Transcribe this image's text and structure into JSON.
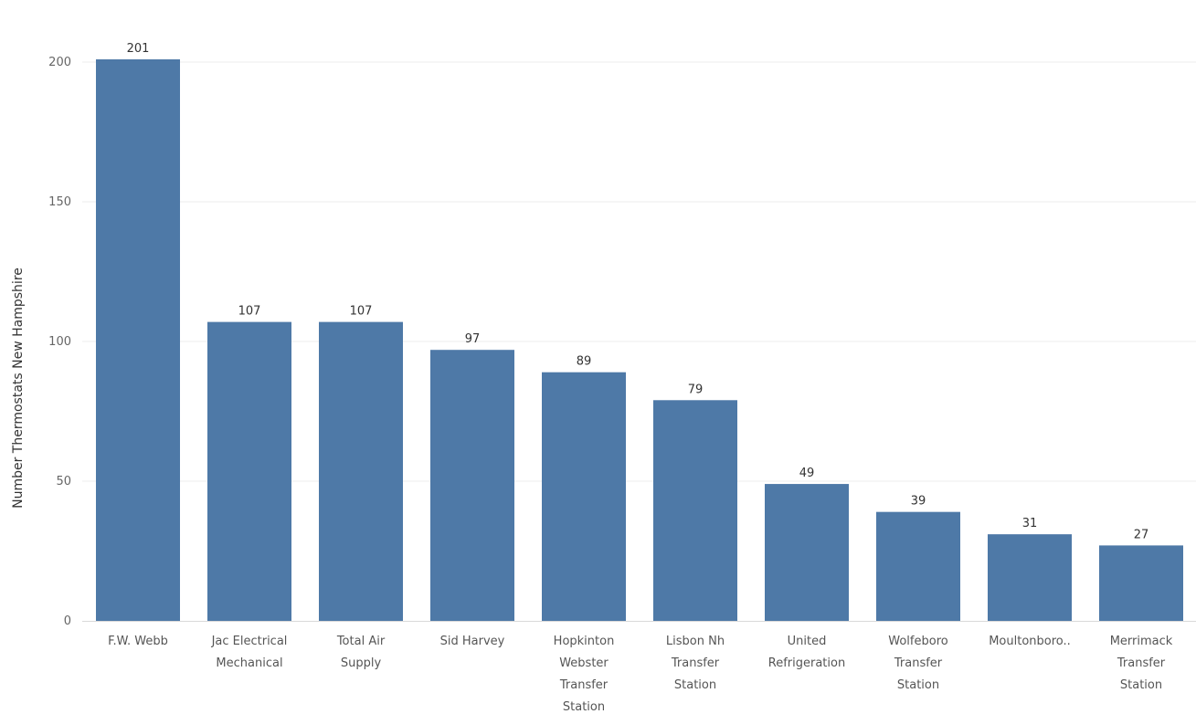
{
  "chart_data": {
    "type": "bar",
    "categories": [
      "F.W. Webb",
      "Jac Electrical Mechanical",
      "Total Air Supply",
      "Sid Harvey",
      "Hopkinton Webster Transfer Station",
      "Lisbon Nh Transfer Station",
      "United Refrigeration",
      "Wolfeboro Transfer Station",
      "Moultonboro..",
      "Merrimack Transfer Station"
    ],
    "category_label_lines": [
      [
        "F.W. Webb"
      ],
      [
        "Jac Electrical",
        "Mechanical"
      ],
      [
        "Total Air",
        "Supply"
      ],
      [
        "Sid Harvey"
      ],
      [
        "Hopkinton",
        "Webster",
        "Transfer",
        "Station"
      ],
      [
        "Lisbon Nh",
        "Transfer",
        "Station"
      ],
      [
        "United",
        "Refrigeration"
      ],
      [
        "Wolfeboro",
        "Transfer",
        "Station"
      ],
      [
        "Moultonboro.."
      ],
      [
        "Merrimack",
        "Transfer",
        "Station"
      ]
    ],
    "values": [
      201,
      107,
      107,
      97,
      89,
      79,
      49,
      39,
      31,
      27
    ],
    "data_labels": [
      "201",
      "107",
      "107",
      "97",
      "89",
      "79",
      "49",
      "39",
      "31",
      "27"
    ],
    "title": "",
    "xlabel": "",
    "ylabel": "Number Thermostats New Hampshire",
    "ylim": [
      0,
      201
    ],
    "yticks": [
      0,
      50,
      100,
      150,
      200
    ],
    "grid": true,
    "legend": "none",
    "bar_color": "#4e79a7",
    "grid_color": "#ececec"
  }
}
